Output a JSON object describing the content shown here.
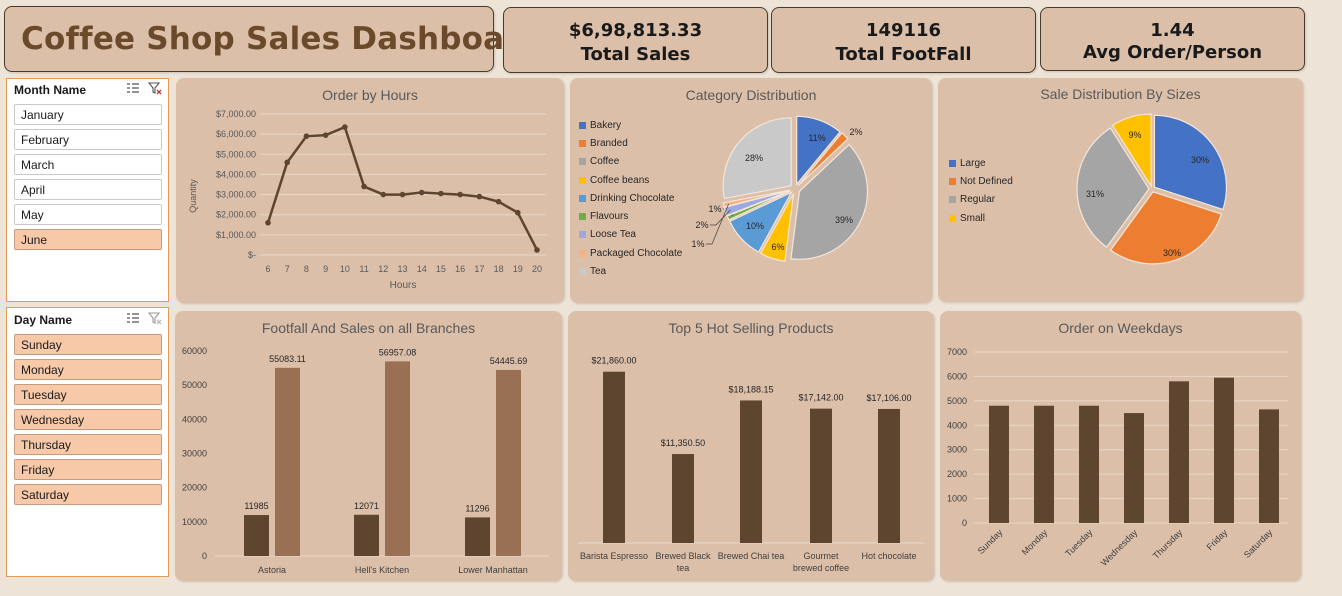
{
  "header": {
    "title": "Coffee Shop Sales Dashboard"
  },
  "kpis": [
    {
      "value": "$6,98,813.33",
      "label": "Total Sales"
    },
    {
      "value": "149116",
      "label": "Total FootFall"
    },
    {
      "value": "1.44",
      "label": "Avg Order/Person"
    }
  ],
  "month_slicer": {
    "title": "Month Name",
    "icons": [
      "multi-select-icon",
      "clear-filter-icon"
    ],
    "items": [
      {
        "label": "January",
        "selected": false
      },
      {
        "label": "February",
        "selected": false
      },
      {
        "label": "March",
        "selected": false
      },
      {
        "label": "April",
        "selected": false
      },
      {
        "label": "May",
        "selected": false
      },
      {
        "label": "June",
        "selected": true
      }
    ]
  },
  "day_slicer": {
    "title": "Day Name",
    "icons": [
      "multi-select-icon",
      "clear-filter-icon"
    ],
    "items": [
      {
        "label": "Sunday",
        "selected": true
      },
      {
        "label": "Monday",
        "selected": true
      },
      {
        "label": "Tuesday",
        "selected": true
      },
      {
        "label": "Wednesday",
        "selected": true
      },
      {
        "label": "Thursday",
        "selected": true
      },
      {
        "label": "Friday",
        "selected": true
      },
      {
        "label": "Saturday",
        "selected": true
      }
    ]
  },
  "colors": {
    "bar_dark": "#5e4530",
    "bar_light": "#9a7055",
    "line": "#5e4530",
    "panel": "#dcbfa9"
  },
  "chart_data": [
    {
      "id": "orders_by_hours",
      "type": "line",
      "title": "Order by Hours",
      "xlabel": "Hours",
      "ylabel": "Quantity",
      "x": [
        6,
        7,
        8,
        9,
        10,
        11,
        12,
        13,
        14,
        15,
        16,
        17,
        18,
        19,
        20
      ],
      "y": [
        1600,
        4600,
        5900,
        5950,
        6350,
        3400,
        3000,
        3000,
        3100,
        3050,
        3000,
        2900,
        2650,
        2100,
        250
      ],
      "ylim": [
        0,
        7000
      ],
      "yticks": [
        "$-",
        "$1,000.00",
        "$2,000.00",
        "$3,000.00",
        "$4,000.00",
        "$5,000.00",
        "$6,000.00",
        "$7,000.00"
      ],
      "grid": true
    },
    {
      "id": "category_distribution",
      "type": "pie",
      "title": "Category Distribution",
      "legend_position": "left",
      "slices": [
        {
          "name": "Bakery",
          "value": 11,
          "label": "11%",
          "color": "#4472c4"
        },
        {
          "name": "Branded",
          "value": 2,
          "label": "2%",
          "color": "#ed7d31"
        },
        {
          "name": "Coffee",
          "value": 39,
          "label": "39%",
          "color": "#a5a5a5"
        },
        {
          "name": "Coffee beans",
          "value": 6,
          "label": "6%",
          "color": "#ffc000"
        },
        {
          "name": "Drinking Chocolate",
          "value": 10,
          "label": "10%",
          "color": "#5b9bd5"
        },
        {
          "name": "Flavours",
          "value": 1,
          "label": "1%",
          "color": "#70ad47"
        },
        {
          "name": "Loose Tea",
          "value": 2,
          "label": "2%",
          "color": "#9ea8e0"
        },
        {
          "name": "Packaged Chocolate",
          "value": 1,
          "label": "1%",
          "color": "#f4b183"
        },
        {
          "name": "Tea",
          "value": 28,
          "label": "28%",
          "color": "#c9c9c9"
        }
      ]
    },
    {
      "id": "sizes_distribution",
      "type": "pie",
      "title": "Sale Distribution By Sizes",
      "legend_position": "left",
      "slices": [
        {
          "name": "Large",
          "value": 30,
          "label": "30%",
          "color": "#4472c4"
        },
        {
          "name": "Not Defined",
          "value": 30,
          "label": "30%",
          "color": "#ed7d31"
        },
        {
          "name": "Regular",
          "value": 31,
          "label": "31%",
          "color": "#a5a5a5"
        },
        {
          "name": "Small",
          "value": 9,
          "label": "9%",
          "color": "#ffc000"
        }
      ]
    },
    {
      "id": "footfall_sales_branches",
      "type": "bar",
      "title": "Footfall And Sales on all Branches",
      "categories": [
        "Astoria",
        "Hell's Kitchen",
        "Lower Manhattan"
      ],
      "series": [
        {
          "values": [
            11985,
            12071,
            11296
          ],
          "labels": [
            "11985",
            "12071",
            "11296"
          ]
        },
        {
          "values": [
            55083.11,
            56957.08,
            54445.69
          ],
          "labels": [
            "55083.11",
            "56957.08",
            "54445.69"
          ]
        }
      ],
      "ylim": [
        0,
        60000
      ],
      "yticks": [
        "0",
        "10000",
        "20000",
        "30000",
        "40000",
        "50000",
        "60000"
      ]
    },
    {
      "id": "top5_products",
      "type": "bar",
      "title": "Top 5 Hot Selling Products",
      "categories": [
        [
          "Barista Espresso"
        ],
        [
          "Brewed Black",
          "tea"
        ],
        [
          "Brewed Chai tea"
        ],
        [
          "Gourmet",
          "brewed coffee"
        ],
        [
          "Hot chocolate"
        ]
      ],
      "values": [
        21860,
        11350.5,
        18188.15,
        17142,
        17106
      ],
      "labels": [
        "$21,860.00",
        "$11,350.50",
        "$18,188.15",
        "$17,142.00",
        "$17,106.00"
      ]
    },
    {
      "id": "orders_weekdays",
      "type": "bar",
      "title": "Order on Weekdays",
      "categories": [
        "Sunday",
        "Monday",
        "Tuesday",
        "Wednesday",
        "Thursday",
        "Friday",
        "Saturday"
      ],
      "values": [
        4800,
        4800,
        4800,
        4500,
        5800,
        5950,
        4650
      ],
      "ylim": [
        0,
        7000
      ],
      "yticks": [
        "0",
        "1000",
        "2000",
        "3000",
        "4000",
        "5000",
        "6000",
        "7000"
      ],
      "grid": true
    }
  ]
}
